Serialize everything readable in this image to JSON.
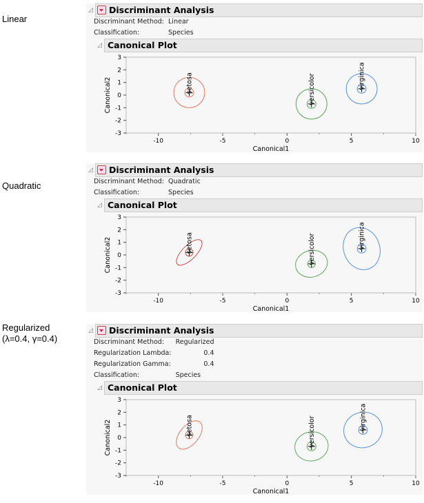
{
  "panels": [
    {
      "side_label": [
        "Linear"
      ],
      "title": "Discriminant Analysis",
      "info": [
        [
          "Discriminant Method:",
          "Linear"
        ],
        [
          "Classification:",
          "Species"
        ]
      ],
      "plot_title": "Canonical Plot",
      "chart_data": {
        "type": "scatter",
        "xlabel": "Canonical1",
        "ylabel": "Canonical2",
        "xlim": [
          -12.5,
          10
        ],
        "ylim": [
          -3,
          3
        ],
        "xticks": [
          -10,
          -5,
          0,
          5,
          10
        ],
        "yticks": [
          3,
          2,
          1,
          0,
          -1,
          -2,
          -3
        ],
        "groups": [
          {
            "name": "setosa",
            "color": "#e07a60",
            "center": [
              -7.6,
              0.2
            ],
            "inner_r": 0.35,
            "ellipse": {
              "rx": 1.2,
              "ry": 1.2,
              "angle": 0
            }
          },
          {
            "name": "versicolor",
            "color": "#5aa85a",
            "center": [
              1.9,
              -0.7
            ],
            "inner_r": 0.35,
            "ellipse": {
              "rx": 1.2,
              "ry": 1.2,
              "angle": 0
            }
          },
          {
            "name": "virginica",
            "color": "#5592dd",
            "center": [
              5.8,
              0.5
            ],
            "inner_r": 0.35,
            "ellipse": {
              "rx": 1.2,
              "ry": 1.2,
              "angle": 0
            }
          }
        ]
      }
    },
    {
      "side_label": [
        "Quadratic"
      ],
      "title": "Discriminant Analysis",
      "info": [
        [
          "Discriminant Method:",
          "Quadratic"
        ],
        [
          "Classification:",
          "Species"
        ]
      ],
      "plot_title": "Canonical Plot",
      "chart_data": {
        "type": "scatter",
        "xlabel": "Canonical1",
        "ylabel": "Canonical2",
        "xlim": [
          -12.5,
          10
        ],
        "ylim": [
          -3,
          3
        ],
        "xticks": [
          -10,
          -5,
          0,
          5,
          10
        ],
        "yticks": [
          3,
          2,
          1,
          0,
          -1,
          -2,
          -3
        ],
        "groups": [
          {
            "name": "setosa",
            "color": "#c0504d",
            "center": [
              -7.6,
              0.2
            ],
            "inner_r": 0.3,
            "ellipse": {
              "rx": 1.3,
              "ry": 0.55,
              "angle": -45
            }
          },
          {
            "name": "versicolor",
            "color": "#5aa85a",
            "center": [
              1.9,
              -0.7
            ],
            "inner_r": 0.3,
            "ellipse": {
              "rx": 1.25,
              "ry": 1.05,
              "angle": -15
            }
          },
          {
            "name": "virginica",
            "color": "#5592dd",
            "center": [
              5.8,
              0.5
            ],
            "inner_r": 0.35,
            "ellipse": {
              "rx": 1.4,
              "ry": 1.7,
              "angle": -20
            }
          }
        ]
      }
    },
    {
      "side_label": [
        "Regularized",
        "(λ=0.4, γ=0.4)"
      ],
      "title": "Discriminant Analysis",
      "info": [
        [
          "Discriminant Method:",
          "Regularized"
        ],
        [
          "Regularization Lambda:",
          "0.4"
        ],
        [
          "Regularization Gamma:",
          "0.4"
        ],
        [
          "Classification:",
          "Species"
        ]
      ],
      "plot_title": "Canonical Plot",
      "chart_data": {
        "type": "scatter",
        "xlabel": "Canonical1",
        "ylabel": "Canonical2",
        "xlim": [
          -12.5,
          10
        ],
        "ylim": [
          -3,
          3
        ],
        "xticks": [
          -10,
          -5,
          0,
          5,
          10
        ],
        "yticks": [
          3,
          2,
          1,
          0,
          -1,
          -2,
          -3
        ],
        "groups": [
          {
            "name": "setosa",
            "color": "#e07a60",
            "center": [
              -7.6,
              0.2
            ],
            "inner_r": 0.3,
            "ellipse": {
              "rx": 1.3,
              "ry": 0.75,
              "angle": -50
            }
          },
          {
            "name": "versicolor",
            "color": "#5aa85a",
            "center": [
              1.9,
              -0.7
            ],
            "inner_r": 0.35,
            "ellipse": {
              "rx": 1.3,
              "ry": 1.15,
              "angle": -10
            }
          },
          {
            "name": "virginica",
            "color": "#5592dd",
            "center": [
              5.9,
              0.6
            ],
            "inner_r": 0.35,
            "ellipse": {
              "rx": 1.5,
              "ry": 1.4,
              "angle": -15
            }
          }
        ]
      }
    }
  ]
}
